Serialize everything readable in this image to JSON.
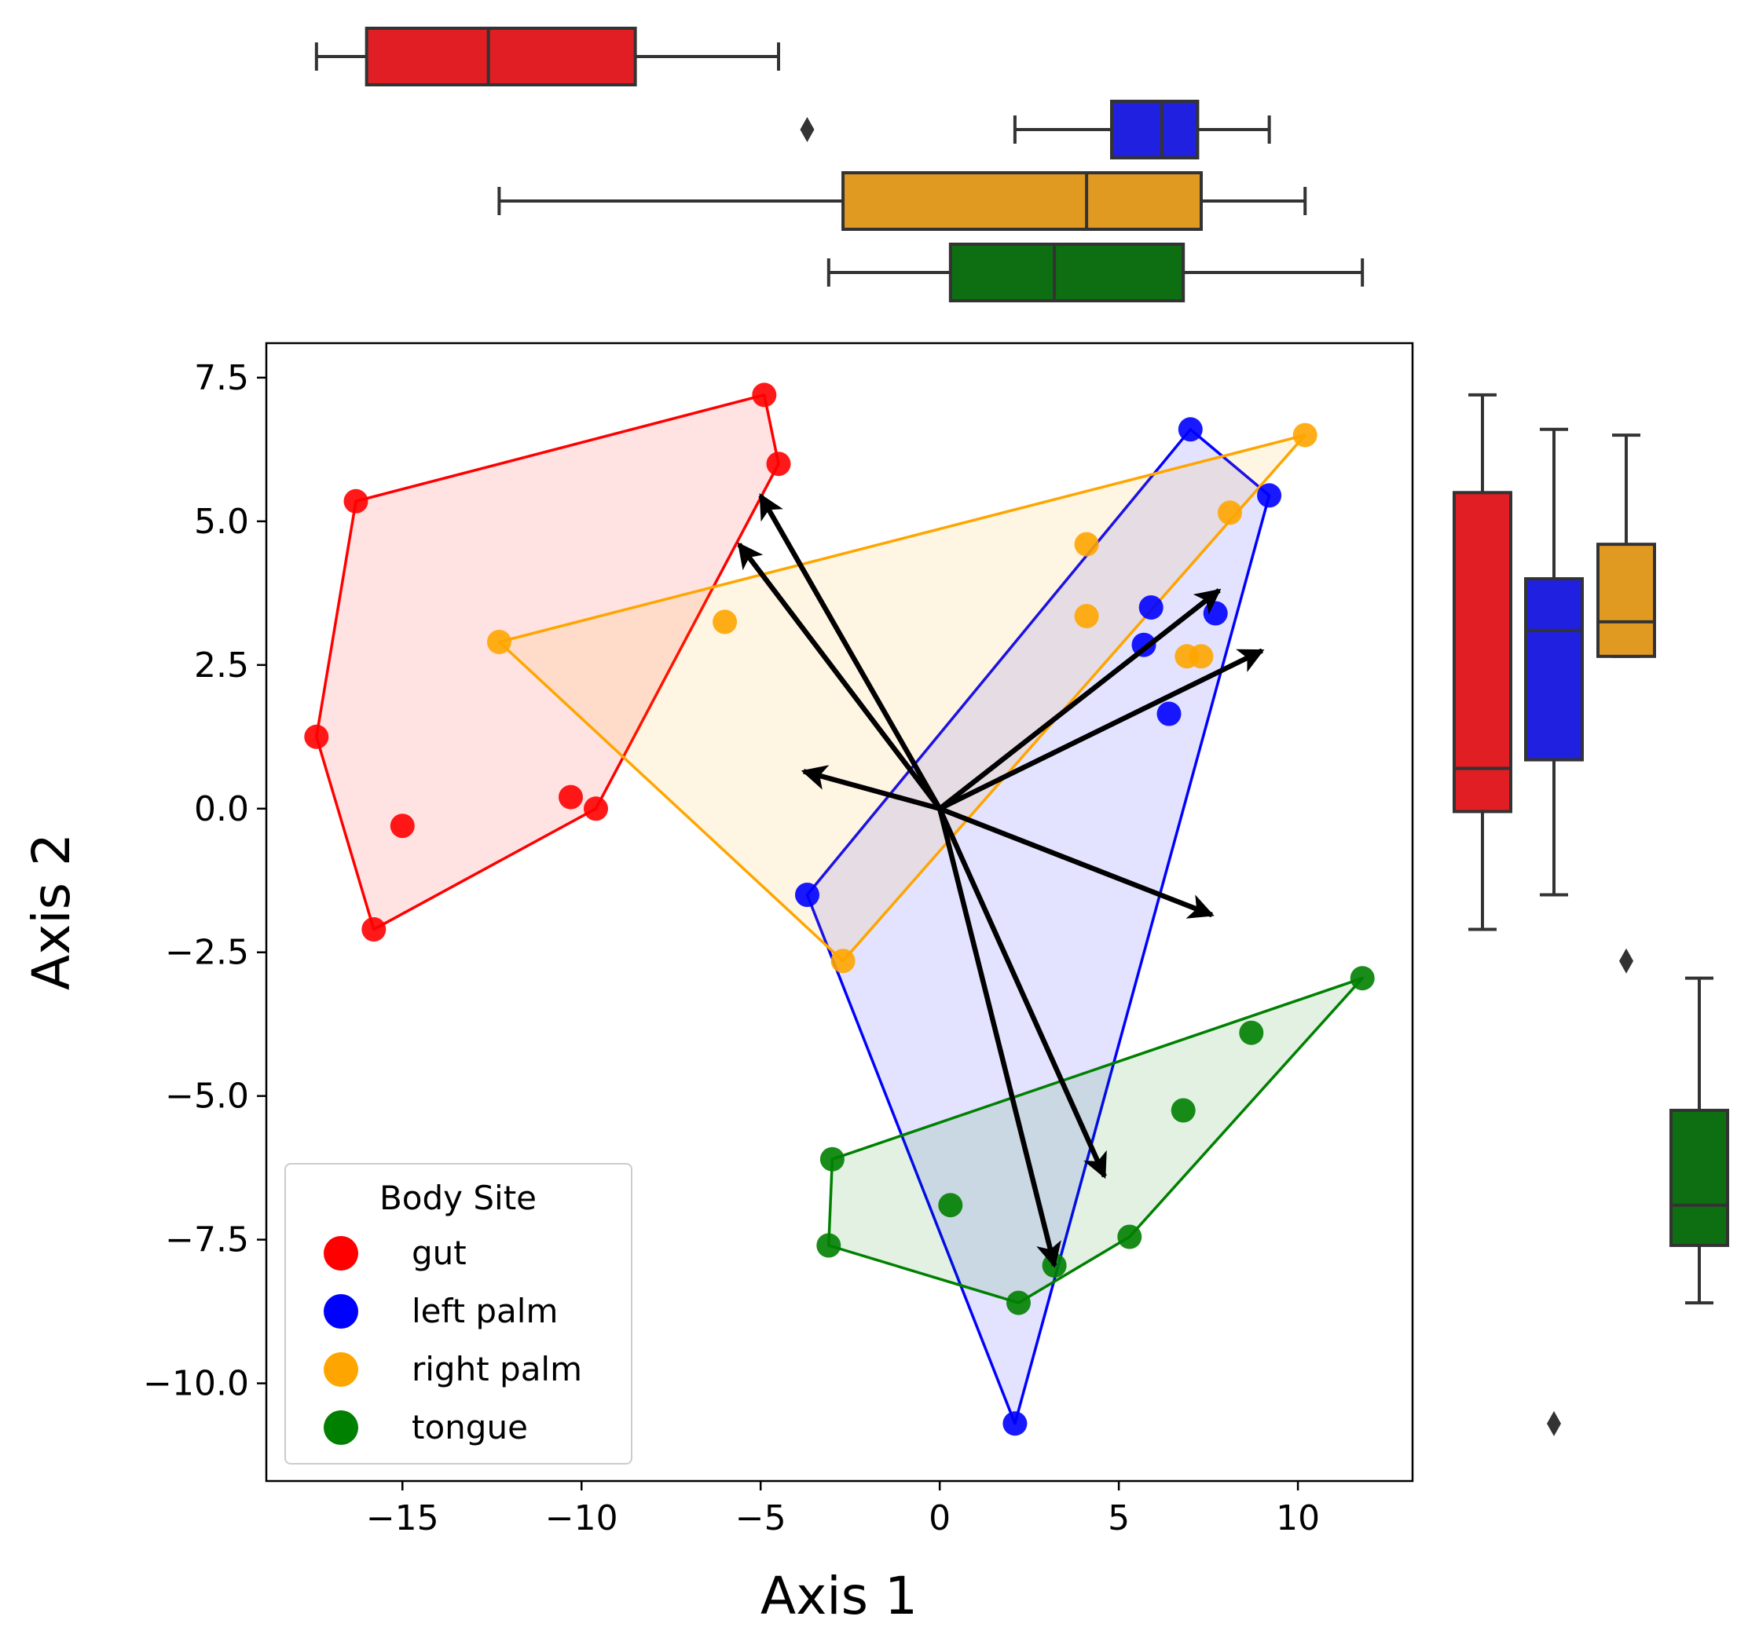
{
  "chart_data": {
    "type": "scatter",
    "subtype": "biplot with convex hulls and marginal boxplots",
    "xlabel": "Axis 1",
    "ylabel": "Axis 2",
    "xlim": [
      -18.8,
      13.2
    ],
    "ylim": [
      -11.7,
      8.1
    ],
    "xticks": [
      -15,
      -10,
      -5,
      0,
      5,
      10
    ],
    "xtick_labels": [
      "−15",
      "−10",
      "−5",
      "0",
      "5",
      "10"
    ],
    "yticks": [
      7.5,
      5.0,
      2.5,
      0.0,
      -2.5,
      -5.0,
      -7.5,
      -10.0
    ],
    "ytick_labels": [
      "7.5",
      "5.0",
      "2.5",
      "0.0",
      "−2.5",
      "−5.0",
      "−7.5",
      "−10.0"
    ],
    "grid": false,
    "legend": {
      "title": "Body Site",
      "position": "lower-left",
      "entries": [
        "gut",
        "left palm",
        "right palm",
        "tongue"
      ]
    },
    "series": [
      {
        "name": "gut",
        "color": "#ff0000",
        "points": [
          [
            -4.9,
            7.2
          ],
          [
            -4.5,
            6.0
          ],
          [
            -16.3,
            5.35
          ],
          [
            -17.4,
            1.25
          ],
          [
            -15.0,
            -0.3
          ],
          [
            -10.3,
            0.2
          ],
          [
            -9.6,
            0.0
          ],
          [
            -15.8,
            -2.1
          ]
        ],
        "hull": [
          [
            -4.9,
            7.2
          ],
          [
            -4.5,
            6.0
          ],
          [
            -9.6,
            0.0
          ],
          [
            -15.8,
            -2.1
          ],
          [
            -17.4,
            1.25
          ],
          [
            -16.3,
            5.35
          ]
        ],
        "box_x": {
          "whisker_low": -17.4,
          "q1": -16.0,
          "median": -12.6,
          "q3": -8.5,
          "whisker_high": -4.5,
          "outliers": []
        },
        "box_y": {
          "whisker_low": -2.1,
          "q1": -0.05,
          "median": 0.7,
          "q3": 5.5,
          "whisker_high": 7.2,
          "outliers": []
        }
      },
      {
        "name": "left palm",
        "color": "#0000ff",
        "points": [
          [
            7.0,
            6.6
          ],
          [
            9.2,
            5.45
          ],
          [
            5.9,
            3.5
          ],
          [
            7.7,
            3.4
          ],
          [
            5.7,
            2.85
          ],
          [
            6.4,
            1.65
          ],
          [
            -3.7,
            -1.5
          ],
          [
            2.1,
            -10.7
          ]
        ],
        "hull": [
          [
            7.0,
            6.6
          ],
          [
            9.2,
            5.45
          ],
          [
            2.1,
            -10.7
          ],
          [
            -3.7,
            -1.5
          ]
        ],
        "box_x": {
          "whisker_low": 2.1,
          "q1": 4.8,
          "median": 6.2,
          "q3": 7.2,
          "whisker_high": 9.2,
          "outliers": [
            -3.7
          ]
        },
        "box_y": {
          "whisker_low": -1.5,
          "q1": 0.85,
          "median": 3.1,
          "q3": 4.0,
          "whisker_high": 6.6,
          "outliers": [
            -10.7
          ]
        }
      },
      {
        "name": "right palm",
        "color": "#ffa500",
        "points": [
          [
            10.2,
            6.5
          ],
          [
            8.1,
            5.15
          ],
          [
            4.1,
            4.6
          ],
          [
            4.1,
            3.35
          ],
          [
            -6.0,
            3.25
          ],
          [
            6.9,
            2.65
          ],
          [
            7.3,
            2.65
          ],
          [
            -12.3,
            2.9
          ],
          [
            -2.7,
            -2.65
          ]
        ],
        "hull": [
          [
            10.2,
            6.5
          ],
          [
            -2.7,
            -2.65
          ],
          [
            -12.3,
            2.9
          ]
        ],
        "box_x": {
          "whisker_low": -12.3,
          "q1": -2.7,
          "median": 4.1,
          "q3": 7.3,
          "whisker_high": 10.2,
          "outliers": []
        },
        "box_y": {
          "whisker_low": 2.65,
          "q1": 2.65,
          "median": 3.25,
          "q3": 4.6,
          "whisker_high": 6.5,
          "outliers": [
            -2.65
          ]
        }
      },
      {
        "name": "tongue",
        "color": "#008000",
        "points": [
          [
            11.8,
            -2.95
          ],
          [
            8.7,
            -3.9
          ],
          [
            6.8,
            -5.25
          ],
          [
            -3.0,
            -6.1
          ],
          [
            0.3,
            -6.9
          ],
          [
            -3.1,
            -7.6
          ],
          [
            5.3,
            -7.45
          ],
          [
            3.2,
            -7.95
          ],
          [
            2.2,
            -8.6
          ]
        ],
        "hull": [
          [
            11.8,
            -2.95
          ],
          [
            5.3,
            -7.45
          ],
          [
            2.2,
            -8.6
          ],
          [
            -3.1,
            -7.6
          ],
          [
            -3.0,
            -6.1
          ]
        ],
        "box_x": {
          "whisker_low": -3.1,
          "q1": 0.3,
          "median": 3.2,
          "q3": 6.8,
          "whisker_high": 11.8,
          "outliers": []
        },
        "box_y": {
          "whisker_low": -8.6,
          "q1": -7.6,
          "median": -6.9,
          "q3": -5.25,
          "whisker_high": -2.95,
          "outliers": []
        }
      }
    ],
    "arrows": [
      [
        -5.0,
        5.45
      ],
      [
        -5.6,
        4.6
      ],
      [
        -3.8,
        0.65
      ],
      [
        7.8,
        3.8
      ],
      [
        9.0,
        2.75
      ],
      [
        7.6,
        -1.85
      ],
      [
        4.6,
        -6.4
      ],
      [
        3.2,
        -7.95
      ]
    ]
  }
}
